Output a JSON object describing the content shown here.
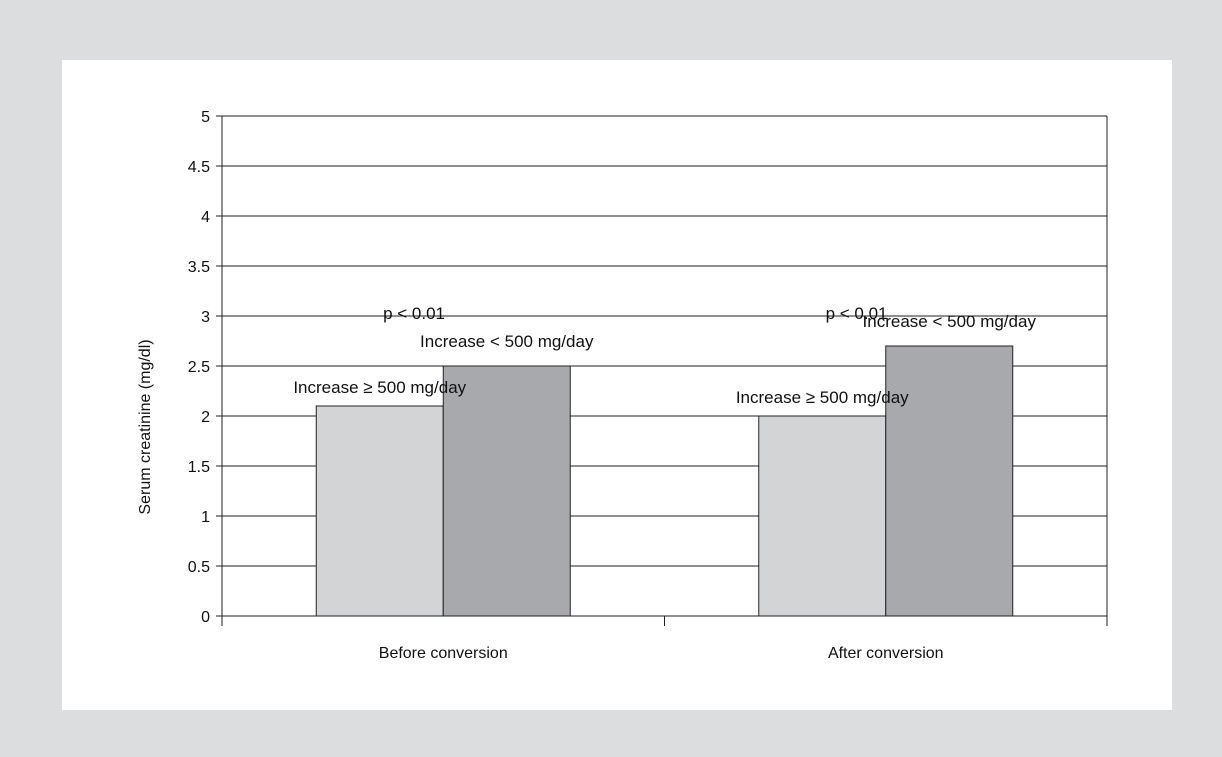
{
  "chart_data": {
    "type": "bar",
    "categories": [
      "Before conversion",
      "After conversion"
    ],
    "series": [
      {
        "name": "Increase ≥ 500 mg/day",
        "values": [
          2.1,
          2.0
        ],
        "color": "#d3d4d6"
      },
      {
        "name": "Increase < 500 mg/day",
        "values": [
          2.5,
          2.7
        ],
        "color": "#a8a9ac"
      }
    ],
    "annotations": [
      "p < 0.01",
      "p < 0.01"
    ],
    "ylabel": "Serum creatinine (mg/dl)",
    "xlabel": "",
    "ylim": [
      0,
      5
    ],
    "yticks": [
      "0",
      "0.5",
      "1",
      "1.5",
      "2",
      "2.5",
      "3",
      "3.5",
      "4",
      "4.5",
      "5"
    ],
    "grid": true
  },
  "colors": {
    "page_background": "#dcdddf",
    "panel_background": "#ffffff",
    "gridline": "#222222"
  }
}
